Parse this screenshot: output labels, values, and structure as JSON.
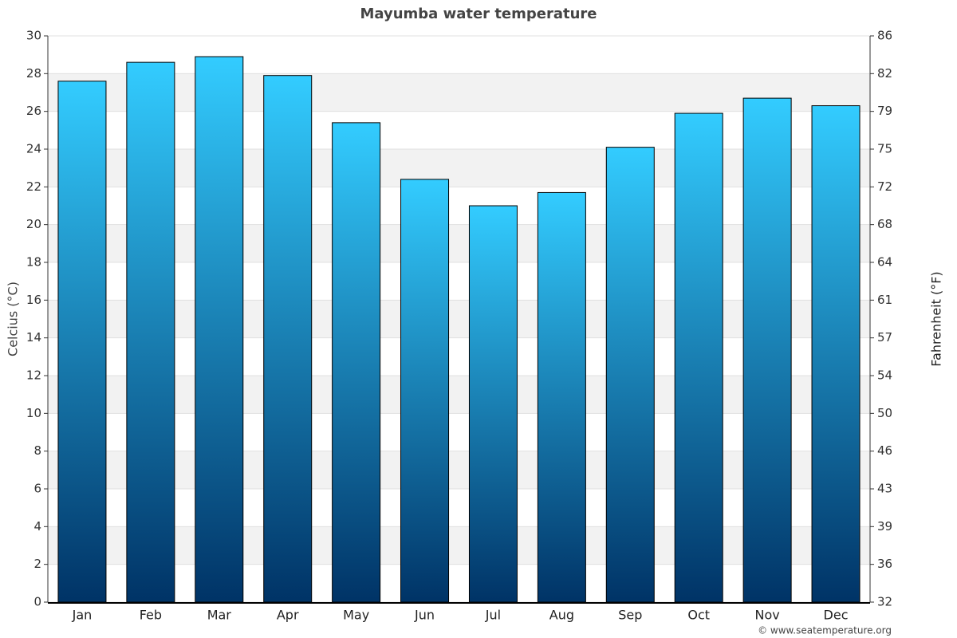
{
  "chart_data": {
    "type": "bar",
    "title": "Mayumba water temperature",
    "categories": [
      "Jan",
      "Feb",
      "Mar",
      "Apr",
      "May",
      "Jun",
      "Jul",
      "Aug",
      "Sep",
      "Oct",
      "Nov",
      "Dec"
    ],
    "values": [
      27.6,
      28.6,
      28.9,
      27.9,
      25.4,
      22.4,
      21.0,
      21.7,
      24.1,
      25.9,
      26.7,
      26.3
    ],
    "colors": [
      "#33ccff",
      "#003366"
    ],
    "ylabel": "Celcius (°C)",
    "y2label": "Fahrenheit (°F)",
    "ylim": [
      0,
      30
    ],
    "yticks": [
      0,
      2,
      4,
      6,
      8,
      10,
      12,
      14,
      16,
      18,
      20,
      22,
      24,
      26,
      28,
      30
    ],
    "y2lim": [
      32,
      86
    ],
    "y2ticks": [
      32,
      {
        "value": 35.6,
        "label": "36"
      },
      {
        "value": 39.2,
        "label": "39"
      },
      {
        "value": 42.8,
        "label": "43"
      },
      {
        "value": 46.4,
        "label": "46"
      },
      50,
      {
        "value": 53.6,
        "label": "54"
      },
      {
        "value": 57.2,
        "label": "57"
      },
      {
        "value": 60.8,
        "label": "61"
      },
      {
        "value": 64.4,
        "label": "64"
      },
      68,
      {
        "value": 71.6,
        "label": "72"
      },
      {
        "value": 75.2,
        "label": "75"
      },
      {
        "value": 78.8,
        "label": "79"
      },
      {
        "value": 82.4,
        "label": "82"
      },
      86
    ],
    "grid": true,
    "credit": "© www.seatemperature.org"
  }
}
